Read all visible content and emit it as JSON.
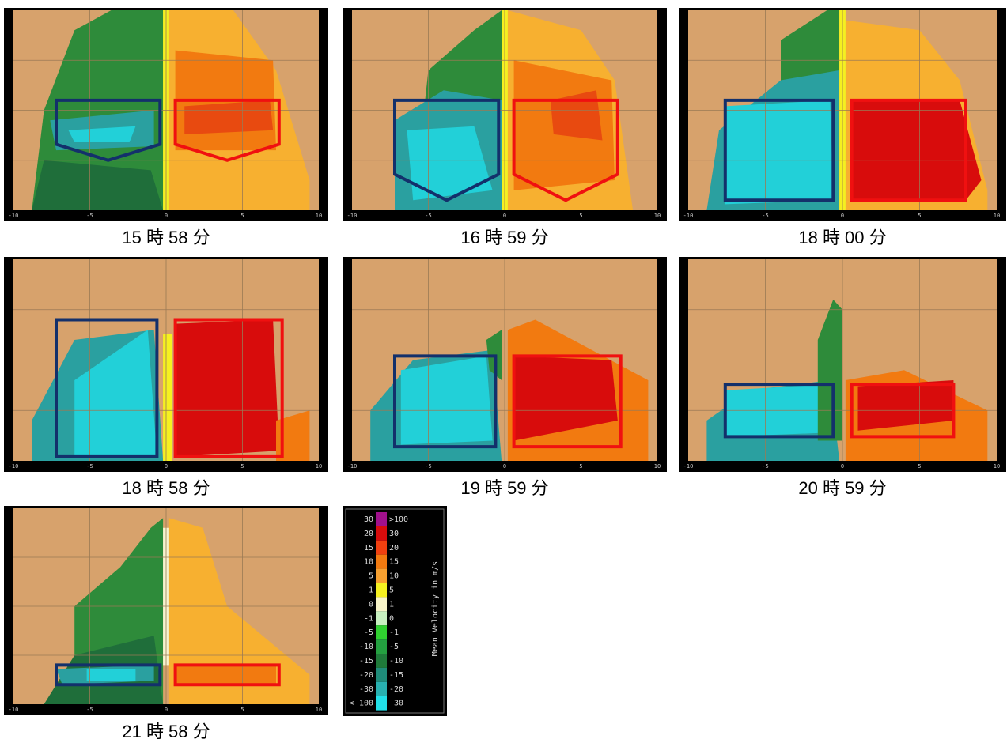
{
  "panels": [
    {
      "caption": "15 時 58 分"
    },
    {
      "caption": "16 時 59 分"
    },
    {
      "caption": "18 時 00 分"
    },
    {
      "caption": "18 時 58 分"
    },
    {
      "caption": "19 時 59 分"
    },
    {
      "caption": "20 時 59 分"
    },
    {
      "caption": "21 時 58 分"
    }
  ],
  "x_tick_labels": [
    "-10",
    "-5",
    "0",
    "5",
    "10"
  ],
  "legend": {
    "title": "Mean Velocity in m/s",
    "left_labels": [
      "30",
      "20",
      "15",
      "10",
      "5",
      "1",
      "0",
      "-1",
      "-5",
      "-10",
      "-15",
      "-20",
      "-30",
      "<-100"
    ],
    "right_labels": [
      ">100",
      "30",
      "20",
      "15",
      "10",
      "5",
      "1",
      "0",
      "-1",
      "-5",
      "-10",
      "-15",
      "-20",
      "-30"
    ]
  }
}
